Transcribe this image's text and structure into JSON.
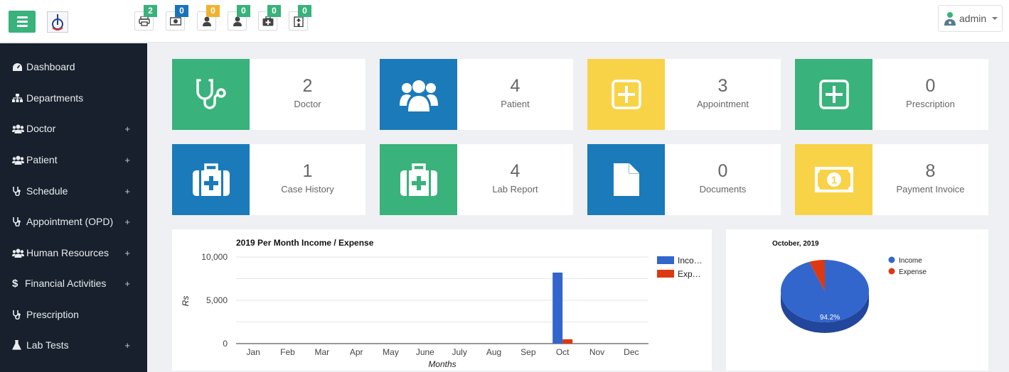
{
  "header": {
    "notifications": [
      {
        "name": "printer",
        "count": "2",
        "color": "#39b27b"
      },
      {
        "name": "money",
        "count": "0",
        "color": "#1b73b9"
      },
      {
        "name": "user",
        "count": "0",
        "color": "#f0b330"
      },
      {
        "name": "user-2",
        "count": "0",
        "color": "#39b27b"
      },
      {
        "name": "medkit",
        "count": "0",
        "color": "#39b27b"
      },
      {
        "name": "hospital",
        "count": "0",
        "color": "#39b27b"
      }
    ],
    "user_label": "admin"
  },
  "sidebar": {
    "items": [
      {
        "label": "Dashboard",
        "icon": "dashboard-icon"
      },
      {
        "label": "Departments",
        "icon": "sitemap-icon"
      },
      {
        "label": "Doctor",
        "icon": "users-icon",
        "expand": "+"
      },
      {
        "label": "Patient",
        "icon": "users-icon",
        "expand": "+"
      },
      {
        "label": "Schedule",
        "icon": "stethoscope-icon",
        "expand": "+"
      },
      {
        "label": "Appointment (OPD)",
        "icon": "stethoscope-icon",
        "expand": "+"
      },
      {
        "label": "Human Resources",
        "icon": "users-icon",
        "expand": "+"
      },
      {
        "label": "Financial Activities",
        "icon": "dollar-icon",
        "expand": "+"
      },
      {
        "label": "Prescription",
        "icon": "stethoscope-icon"
      },
      {
        "label": "Lab Tests",
        "icon": "flask-icon",
        "expand": "+"
      }
    ]
  },
  "stats": [
    {
      "value": "2",
      "label": "Doctor",
      "color": "#39b27b",
      "icon": "stethoscope-icon"
    },
    {
      "value": "4",
      "label": "Patient",
      "color": "#1b7ab9",
      "icon": "users-icon"
    },
    {
      "value": "3",
      "label": "Appointment",
      "color": "#f8d347",
      "icon": "plus-square-icon"
    },
    {
      "value": "0",
      "label": "Prescription",
      "color": "#39b27b",
      "icon": "plus-square-icon"
    },
    {
      "value": "1",
      "label": "Case History",
      "color": "#1b7ab9",
      "icon": "medkit-icon"
    },
    {
      "value": "4",
      "label": "Lab Report",
      "color": "#39b27b",
      "icon": "medkit-icon"
    },
    {
      "value": "0",
      "label": "Documents",
      "color": "#1b7ab9",
      "icon": "file-icon"
    },
    {
      "value": "8",
      "label": "Payment Invoice",
      "color": "#f8d347",
      "icon": "money-icon"
    }
  ],
  "chart_data": [
    {
      "type": "bar",
      "title": "2019 Per Month Income / Expense",
      "xlabel": "Months",
      "ylabel": "Rs",
      "ylim": [
        0,
        10000
      ],
      "yticks": [
        "10,000",
        "5,000",
        "0"
      ],
      "categories": [
        "Jan",
        "Feb",
        "Mar",
        "Apr",
        "May",
        "June",
        "July",
        "Aug",
        "Sep",
        "Oct",
        "Nov",
        "Dec"
      ],
      "series": [
        {
          "name": "Inco…",
          "color": "#3366cc",
          "values": [
            0,
            0,
            0,
            0,
            0,
            0,
            0,
            0,
            0,
            8200,
            0,
            0
          ]
        },
        {
          "name": "Exp…",
          "color": "#dc3912",
          "values": [
            0,
            0,
            0,
            0,
            0,
            0,
            0,
            0,
            0,
            500,
            0,
            0
          ]
        }
      ],
      "legend": "right"
    },
    {
      "type": "pie",
      "title": "October, 2019",
      "labels": [
        "Income",
        "Expense"
      ],
      "values": [
        94.2,
        5.8
      ],
      "slice_label": "94.2%",
      "colors": [
        "#3366cc",
        "#dc3912"
      ],
      "legend": "top-right"
    }
  ]
}
